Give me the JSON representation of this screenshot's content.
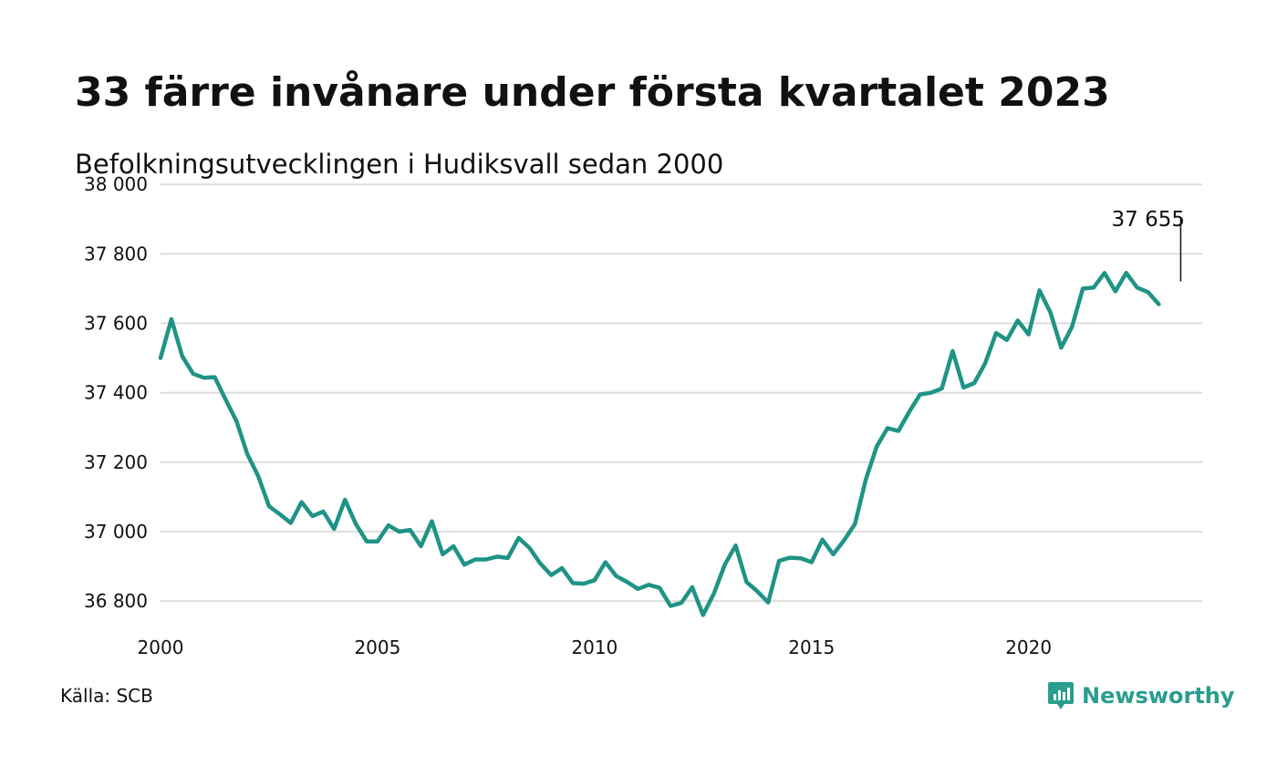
{
  "header": {
    "title": "33 färre invånare under första kvartalet 2023",
    "subtitle": "Befolkningsutvecklingen i Hudiksvall sedan 2000"
  },
  "footer": {
    "source": "Källa: SCB",
    "brand": "Newsworthy",
    "brand_icon": "chart-bubble-icon"
  },
  "colors": {
    "line": "#1f9386",
    "grid": "#dddddd",
    "brand": "#2a9d8f"
  },
  "chart_data": {
    "type": "line",
    "title": "33 färre invånare under första kvartalet 2023",
    "subtitle": "Befolkningsutvecklingen i Hudiksvall sedan 2000",
    "xlabel": "",
    "ylabel": "",
    "xlim": [
      2000,
      2024
    ],
    "ylim": [
      36740,
      38040
    ],
    "x_ticks": [
      2000,
      2005,
      2010,
      2015,
      2020
    ],
    "y_ticks": [
      36800,
      37000,
      37200,
      37400,
      37600,
      37800,
      38000
    ],
    "y_tick_labels": [
      "36 800",
      "37 000",
      "37 200",
      "37 400",
      "37 600",
      "37 800",
      "38 000"
    ],
    "grid": true,
    "legend": "none",
    "annotation": {
      "x": 2023.0,
      "y": 37655,
      "text": "37 655"
    },
    "series": [
      {
        "x": [
          2000.0,
          2000.25,
          2000.5,
          2000.75,
          2001.0,
          2001.25,
          2001.5,
          2001.75,
          2002.0,
          2002.25,
          2002.5,
          2002.75,
          2003.0,
          2003.25,
          2003.5,
          2003.75,
          2004.0,
          2004.25,
          2004.5,
          2004.75,
          2005.0,
          2005.25,
          2005.5,
          2005.75,
          2006.0,
          2006.25,
          2006.5,
          2006.75,
          2007.0,
          2007.25,
          2007.5,
          2007.75,
          2008.0,
          2008.25,
          2008.5,
          2008.75,
          2009.0,
          2009.25,
          2009.5,
          2009.75,
          2010.0,
          2010.25,
          2010.5,
          2010.75,
          2011.0,
          2011.25,
          2011.5,
          2011.75,
          2012.0,
          2012.25,
          2012.5,
          2012.75,
          2013.0,
          2013.25,
          2013.5,
          2013.75,
          2014.0,
          2014.25,
          2014.5,
          2014.75,
          2015.0,
          2015.25,
          2015.5,
          2015.75,
          2016.0,
          2016.25,
          2016.5,
          2016.75,
          2017.0,
          2017.25,
          2017.5,
          2017.75,
          2018.0,
          2018.25,
          2018.5,
          2018.75,
          2019.0,
          2019.25,
          2019.5,
          2019.75,
          2020.0,
          2020.25,
          2020.5,
          2020.75,
          2021.0,
          2021.25,
          2021.5,
          2021.75,
          2022.0,
          2022.25,
          2022.5,
          2022.75,
          2023.0
        ],
        "values": [
          37500,
          37612,
          37505,
          37455,
          37443,
          37445,
          37380,
          37318,
          37223,
          37160,
          37073,
          37050,
          37025,
          37085,
          37045,
          37058,
          37008,
          37092,
          37022,
          36972,
          36972,
          37018,
          37000,
          37005,
          36958,
          37030,
          36935,
          36958,
          36905,
          36920,
          36920,
          36928,
          36924,
          36982,
          36953,
          36908,
          36875,
          36895,
          36852,
          36850,
          36860,
          36912,
          36872,
          36855,
          36835,
          36847,
          36838,
          36786,
          36795,
          36840,
          36760,
          36822,
          36905,
          36960,
          36855,
          36828,
          36796,
          36916,
          36925,
          36923,
          36912,
          36977,
          36935,
          36975,
          37022,
          37150,
          37245,
          37298,
          37290,
          37345,
          37395,
          37400,
          37412,
          37520,
          37415,
          37428,
          37485,
          37572,
          37552,
          37608,
          37568,
          37695,
          37632,
          37530,
          37590,
          37700,
          37703,
          37745,
          37692,
          37745,
          37703,
          37690,
          37655
        ]
      }
    ]
  }
}
